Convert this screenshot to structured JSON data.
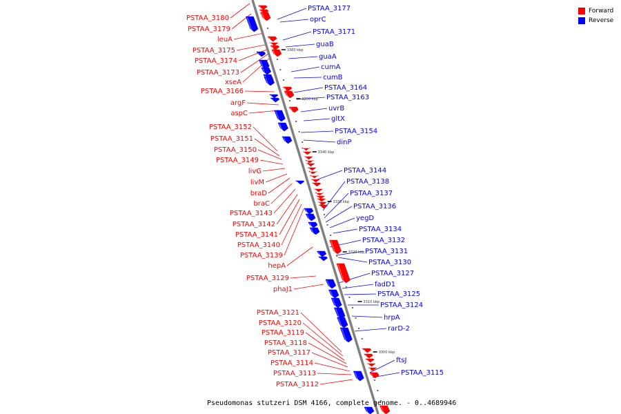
{
  "title": "Pseudomonas stutzeri DSM 4166, complete genome. - 0..4689946",
  "legend": [
    {
      "label": "Forward",
      "color": "#ff0000"
    },
    {
      "label": "Reverse",
      "color": "#0000ff"
    }
  ],
  "colors": {
    "forward": "#ff0000",
    "reverse": "#0000ff",
    "backbone": "#808080"
  },
  "ticks": [
    "3360 kbp",
    "3350 kbp",
    "3340 kbp",
    "3330 kbp",
    "3320 kbp",
    "3310 kbp",
    "3300 kbp"
  ],
  "forward_genes": [
    "PSTAA_3180",
    "PSTAA_3179",
    "leuA",
    "PSTAA_3175",
    "PSTAA_3174",
    "PSTAA_3173",
    "xseA",
    "PSTAA_3166",
    "argF",
    "aspC",
    "PSTAA_3152",
    "PSTAA_3151",
    "PSTAA_3150",
    "PSTAA_3149",
    "livG",
    "livM",
    "braD",
    "braC",
    "PSTAA_3143",
    "PSTAA_3142",
    "PSTAA_3141",
    "PSTAA_3140",
    "PSTAA_3139",
    "hepA",
    "PSTAA_3129",
    "phaJ1",
    "PSTAA_3121",
    "PSTAA_3120",
    "PSTAA_3119",
    "PSTAA_3118",
    "PSTAA_3117",
    "PSTAA_3114",
    "PSTAA_3113",
    "PSTAA_3112"
  ],
  "reverse_genes": [
    "PSTAA_3177",
    "oprC",
    "PSTAA_3171",
    "guaB",
    "guaA",
    "cumA",
    "cumB",
    "PSTAA_3164",
    "PSTAA_3163",
    "uvrB",
    "gltX",
    "PSTAA_3154",
    "dinP",
    "PSTAA_3144",
    "PSTAA_3138",
    "PSTAA_3137",
    "PSTAA_3136",
    "yegD",
    "PSTAA_3134",
    "PSTAA_3132",
    "PSTAA_3131",
    "PSTAA_3130",
    "PSTAA_3127",
    "fadD1",
    "PSTAA_3125",
    "PSTAA_3124",
    "hrpA",
    "rarD-2",
    "ftsJ",
    "PSTAA_3115"
  ]
}
